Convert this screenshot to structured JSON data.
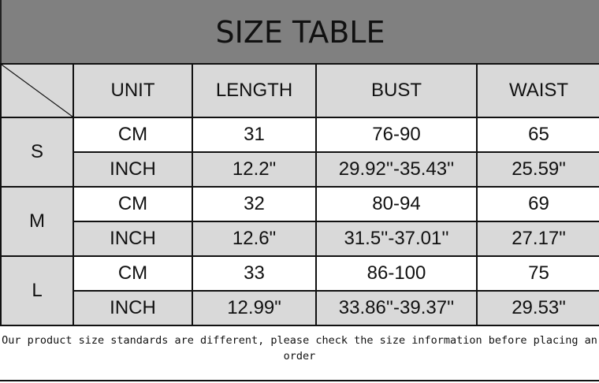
{
  "title": "SIZE TABLE",
  "headers": [
    "UNIT",
    "LENGTH",
    "BUST",
    "WAIST"
  ],
  "sizes": [
    {
      "size": "S",
      "rows": [
        {
          "unit": "CM",
          "length": "31",
          "bust": "76-90",
          "waist": "65"
        },
        {
          "unit": "INCH",
          "length": "12.2\"",
          "bust": "29.92''-35.43''",
          "waist": "25.59\""
        }
      ]
    },
    {
      "size": "M",
      "rows": [
        {
          "unit": "CM",
          "length": "32",
          "bust": "80-94",
          "waist": "69"
        },
        {
          "unit": "INCH",
          "length": "12.6\"",
          "bust": "31.5''-37.01''",
          "waist": "27.17\""
        }
      ]
    },
    {
      "size": "L",
      "rows": [
        {
          "unit": "CM",
          "length": "33",
          "bust": "86-100",
          "waist": "75"
        },
        {
          "unit": "INCH",
          "length": "12.99\"",
          "bust": "33.86''-39.37''",
          "waist": "29.53\""
        }
      ]
    }
  ],
  "note": "Our product size standards are different, please check the size information before placing an order",
  "colors": {
    "title_bg": "#808080",
    "cell_gray": "#d9d9d9"
  }
}
